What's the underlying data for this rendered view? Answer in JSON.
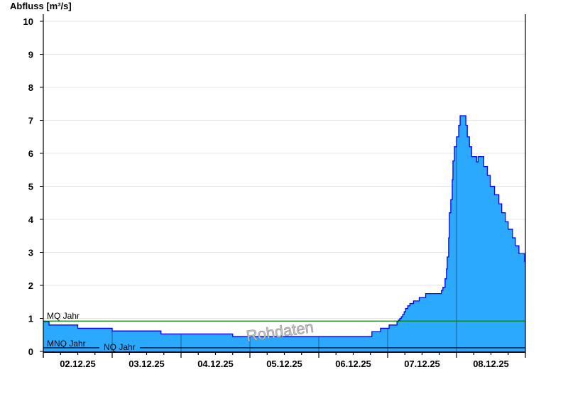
{
  "chart_data": {
    "type": "area",
    "title": "",
    "ylabel": "Abfluss [m³/s]",
    "xlabel": "",
    "ylim": [
      0,
      10
    ],
    "xlim": [
      "02.12.25 00:00",
      "09.12.25 00:00"
    ],
    "yticks": [
      0,
      1,
      2,
      3,
      4,
      5,
      6,
      7,
      8,
      9,
      10
    ],
    "xticks": [
      "02.12.25",
      "03.12.25",
      "04.12.25",
      "05.12.25",
      "06.12.25",
      "07.12.25",
      "08.12.25"
    ],
    "grid": "horizontal",
    "step": true,
    "watermark": "Rohdaten",
    "colors": {
      "fill": "#2aa9fe",
      "line": "#0000ff",
      "mq": "#008000",
      "nq": "#000000"
    },
    "reference_lines": [
      {
        "label": "MQ Jahr",
        "value": 0.92,
        "color": "#008000"
      },
      {
        "label": "MNQ Jahr",
        "value": 0.11,
        "color": "#000000"
      },
      {
        "label": "NQ Jahr",
        "value": 0.1,
        "color": "#000000"
      }
    ],
    "series": [
      {
        "points": [
          [
            "02.12.25 00:00",
            0.9
          ],
          [
            "02.12.25 02:00",
            0.8
          ],
          [
            "02.12.25 12:00",
            0.7
          ],
          [
            "03.12.25 00:00",
            0.62
          ],
          [
            "03.12.25 17:00",
            0.53
          ],
          [
            "04.12.25 18:00",
            0.45
          ],
          [
            "06.12.25 18:30",
            0.6
          ],
          [
            "06.12.25 21:30",
            0.7
          ],
          [
            "07.12.25 00:30",
            0.8
          ],
          [
            "07.12.25 03:15",
            0.9
          ],
          [
            "07.12.25 03:45",
            0.95
          ],
          [
            "07.12.25 04:15",
            1.0
          ],
          [
            "07.12.25 04:45",
            1.05
          ],
          [
            "07.12.25 05:15",
            1.12
          ],
          [
            "07.12.25 05:45",
            1.2
          ],
          [
            "07.12.25 06:15",
            1.3
          ],
          [
            "07.12.25 07:00",
            1.38
          ],
          [
            "07.12.25 07:45",
            1.45
          ],
          [
            "07.12.25 09:00",
            1.53
          ],
          [
            "07.12.25 11:00",
            1.63
          ],
          [
            "07.12.25 13:15",
            1.75
          ],
          [
            "07.12.25 18:45",
            1.85
          ],
          [
            "07.12.25 19:15",
            1.94
          ],
          [
            "07.12.25 20:00",
            2.2
          ],
          [
            "07.12.25 20:30",
            2.5
          ],
          [
            "07.12.25 20:45",
            2.86
          ],
          [
            "07.12.25 21:15",
            3.44
          ],
          [
            "07.12.25 21:30",
            4.2
          ],
          [
            "07.12.25 22:00",
            4.6
          ],
          [
            "07.12.25 22:30",
            5.2
          ],
          [
            "07.12.25 22:45",
            5.77
          ],
          [
            "07.12.25 23:15",
            6.2
          ],
          [
            "08.12.25 00:00",
            6.5
          ],
          [
            "08.12.25 00:45",
            6.85
          ],
          [
            "08.12.25 01:15",
            7.14
          ],
          [
            "08.12.25 03:15",
            6.85
          ],
          [
            "08.12.25 03:45",
            6.5
          ],
          [
            "08.12.25 04:30",
            6.2
          ],
          [
            "08.12.25 05:15",
            5.9
          ],
          [
            "08.12.25 07:00",
            5.74
          ],
          [
            "08.12.25 07:30",
            5.9
          ],
          [
            "08.12.25 09:30",
            5.6
          ],
          [
            "08.12.25 10:45",
            5.33
          ],
          [
            "08.12.25 11:45",
            5.0
          ],
          [
            "08.12.25 13:15",
            4.75
          ],
          [
            "08.12.25 14:45",
            4.47
          ],
          [
            "08.12.25 15:45",
            4.2
          ],
          [
            "08.12.25 17:00",
            3.93
          ],
          [
            "08.12.25 18:00",
            3.7
          ],
          [
            "08.12.25 19:30",
            3.44
          ],
          [
            "08.12.25 20:30",
            3.2
          ],
          [
            "08.12.25 21:45",
            2.96
          ],
          [
            "08.12.25 23:45",
            2.72
          ]
        ]
      }
    ]
  }
}
